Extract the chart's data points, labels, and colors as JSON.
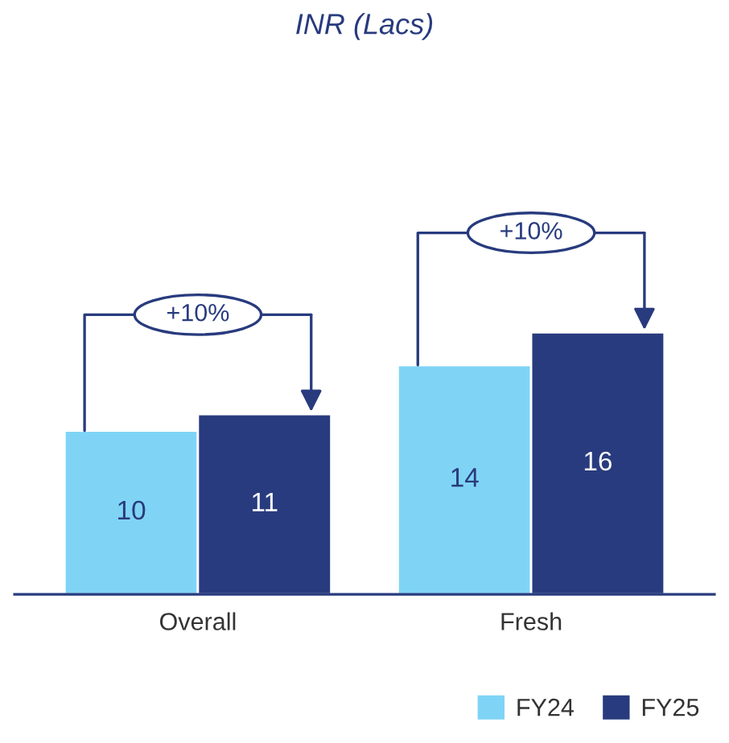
{
  "chart_data": {
    "type": "bar",
    "title": "INR (Lacs)",
    "categories": [
      "Overall",
      "Fresh"
    ],
    "series": [
      {
        "name": "FY24",
        "color": "#7fd4f6",
        "values": [
          10,
          14
        ]
      },
      {
        "name": "FY25",
        "color": "#283b7e",
        "values": [
          11,
          16
        ]
      }
    ],
    "data_labels": true,
    "tick_labels": "x",
    "grid": false,
    "legend": "bottom right",
    "annotations": [
      "+10%",
      "+10%"
    ]
  }
}
